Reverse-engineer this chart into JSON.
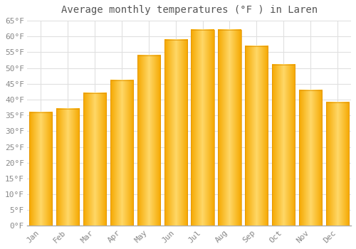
{
  "title": "Average monthly temperatures (°F ) in Laren",
  "months": [
    "Jan",
    "Feb",
    "Mar",
    "Apr",
    "May",
    "Jun",
    "Jul",
    "Aug",
    "Sep",
    "Oct",
    "Nov",
    "Dec"
  ],
  "values": [
    36,
    37,
    42,
    46,
    54,
    59,
    62,
    62,
    57,
    51,
    43,
    39
  ],
  "bar_color_left": "#FFA500",
  "bar_color_center": "#FFD050",
  "bar_color_right": "#FFA500",
  "background_color": "#FFFFFF",
  "ylim": [
    0,
    65
  ],
  "yticks": [
    0,
    5,
    10,
    15,
    20,
    25,
    30,
    35,
    40,
    45,
    50,
    55,
    60,
    65
  ],
  "grid_color": "#E0E0E0",
  "tick_label_color": "#888888",
  "title_color": "#555555",
  "title_fontsize": 10,
  "tick_fontsize": 8,
  "bar_width": 0.85
}
